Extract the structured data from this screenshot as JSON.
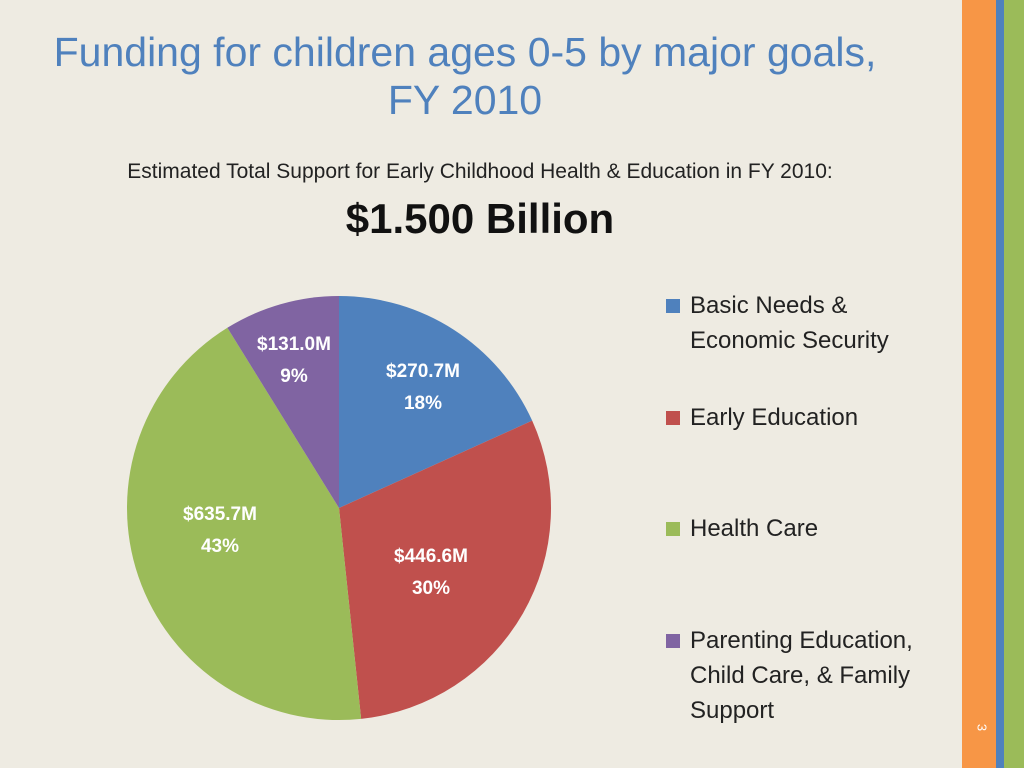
{
  "title": "Funding for children ages 0-5 by major goals, FY 2010",
  "subtitle": "Estimated Total Support for Early Childhood Health & Education in FY 2010:",
  "total": "$1.500 Billion",
  "slide_number": "3",
  "chart_data": {
    "type": "pie",
    "title": "Funding for children ages 0-5 by major goals, FY 2010",
    "legend_position": "right",
    "start": "top, clockwise",
    "slices": [
      {
        "name": "Basic Needs & Economic Security",
        "value": 270.7,
        "value_label": "$270.7M",
        "percent_label": "18%",
        "color": "#4f81bd"
      },
      {
        "name": "Early Education",
        "value": 446.6,
        "value_label": "$446.6M",
        "percent_label": "30%",
        "color": "#c0504d"
      },
      {
        "name": "Health Care",
        "value": 635.7,
        "value_label": "$635.7M",
        "percent_label": "43%",
        "color": "#9bbb59"
      },
      {
        "name": "Parenting Education, Child Care, & Family Support",
        "value": 131.0,
        "value_label": "$131.0M",
        "percent_label": "9%",
        "color": "#8064a2"
      }
    ]
  },
  "legend": [
    {
      "line1": "Basic Needs &",
      "line2": "Economic Security",
      "line3": ""
    },
    {
      "line1": "Early Education",
      "line2": "",
      "line3": ""
    },
    {
      "line1": "Health Care",
      "line2": "",
      "line3": ""
    },
    {
      "line1": "Parenting Education,",
      "line2": "Child Care, & Family",
      "line3": "Support"
    }
  ]
}
